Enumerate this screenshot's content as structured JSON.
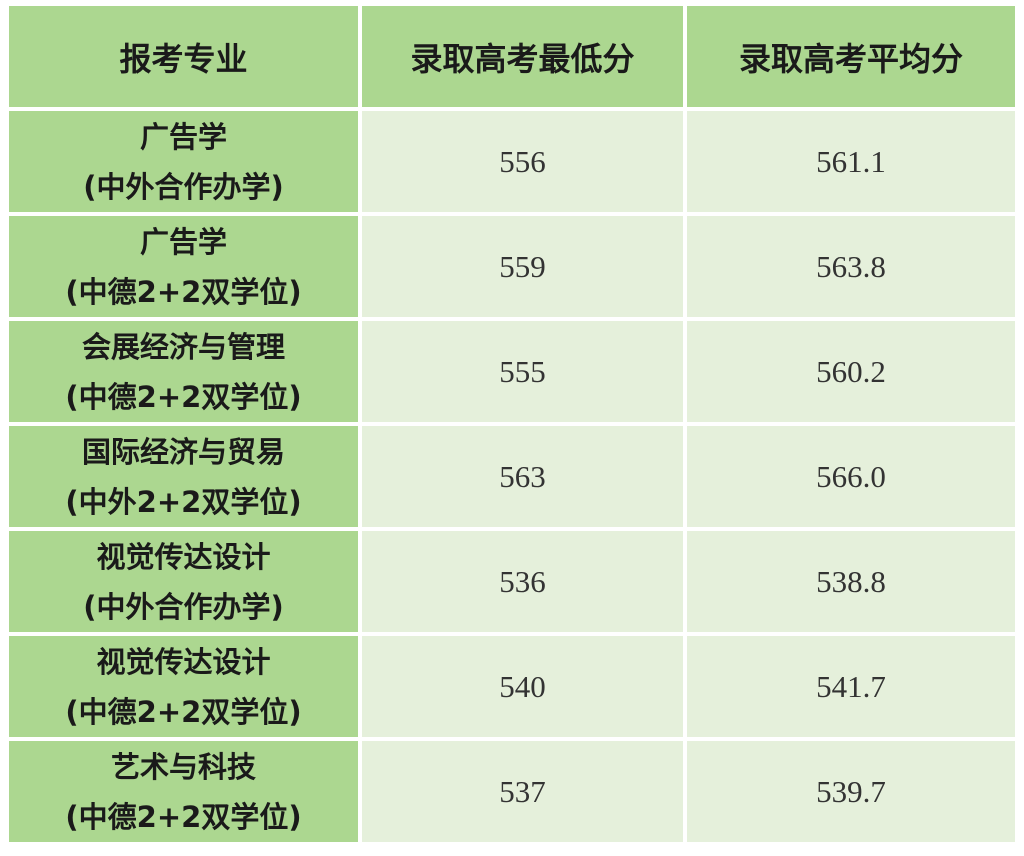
{
  "table": {
    "headers": [
      "报考专业",
      "录取高考最低分",
      "录取高考平均分"
    ],
    "rows": [
      {
        "major": "广告学",
        "program": "(中外合作办学)",
        "min": "556",
        "avg": "561.1"
      },
      {
        "major": "广告学",
        "program": "(中德2+2双学位)",
        "min": "559",
        "avg": "563.8"
      },
      {
        "major": "会展经济与管理",
        "program": "(中德2+2双学位)",
        "min": "555",
        "avg": "560.2"
      },
      {
        "major": "国际经济与贸易",
        "program": "(中外2+2双学位)",
        "min": "563",
        "avg": "566.0"
      },
      {
        "major": "视觉传达设计",
        "program": "(中外合作办学)",
        "min": "536",
        "avg": "538.8"
      },
      {
        "major": "视觉传达设计",
        "program": "(中德2+2双学位)",
        "min": "540",
        "avg": "541.7"
      },
      {
        "major": "艺术与科技",
        "program": "(中德2+2双学位)",
        "min": "537",
        "avg": "539.7"
      }
    ],
    "colors": {
      "header": "#acd790",
      "major_cell": "#acd790",
      "value_cell": "#e5f0db"
    }
  }
}
